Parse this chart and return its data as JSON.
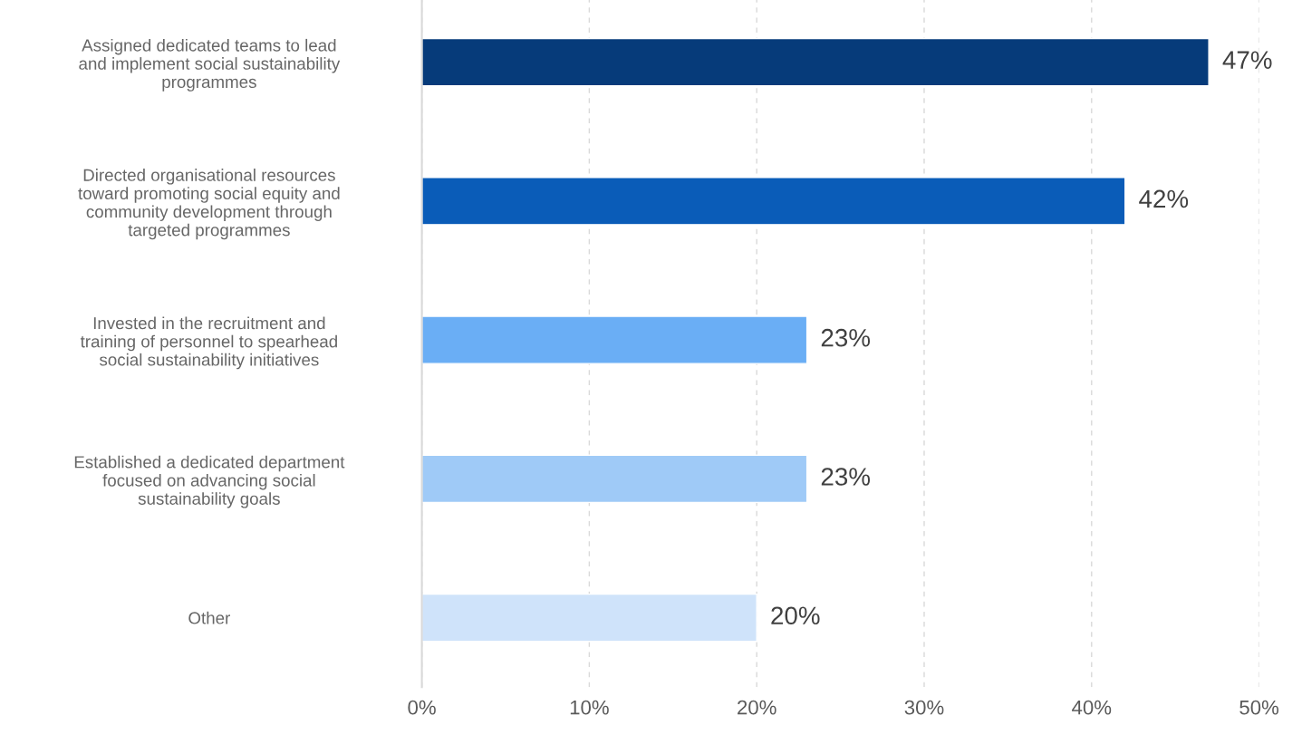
{
  "chart_data": {
    "type": "bar",
    "orientation": "horizontal",
    "categories": [
      "Assigned dedicated teams to lead\nand implement social sustainability\nprogrammes",
      "Directed organisational resources\ntoward promoting social equity and\ncommunity development through\ntargeted programmes",
      "Invested in the recruitment and\ntraining of personnel to spearhead\nsocial sustainability initiatives",
      "Established a dedicated department\nfocused on advancing social\nsustainability goals",
      "Other"
    ],
    "values": [
      47,
      42,
      23,
      23,
      20
    ],
    "colors": [
      "#063b7a",
      "#0a5cb8",
      "#6aaef5",
      "#9fcaf7",
      "#cfe3fa"
    ],
    "xlim": [
      0,
      50
    ],
    "xticks": [
      {
        "value": 0,
        "label": "0%"
      },
      {
        "value": 10,
        "label": "10%"
      },
      {
        "value": 20,
        "label": "20%"
      },
      {
        "value": 30,
        "label": "30%"
      },
      {
        "value": 40,
        "label": "40%"
      },
      {
        "value": 50,
        "label": "50%"
      }
    ],
    "value_labels": [
      "47%",
      "42%",
      "23%",
      "23%",
      "20%"
    ],
    "grid": "x",
    "legend": false
  }
}
